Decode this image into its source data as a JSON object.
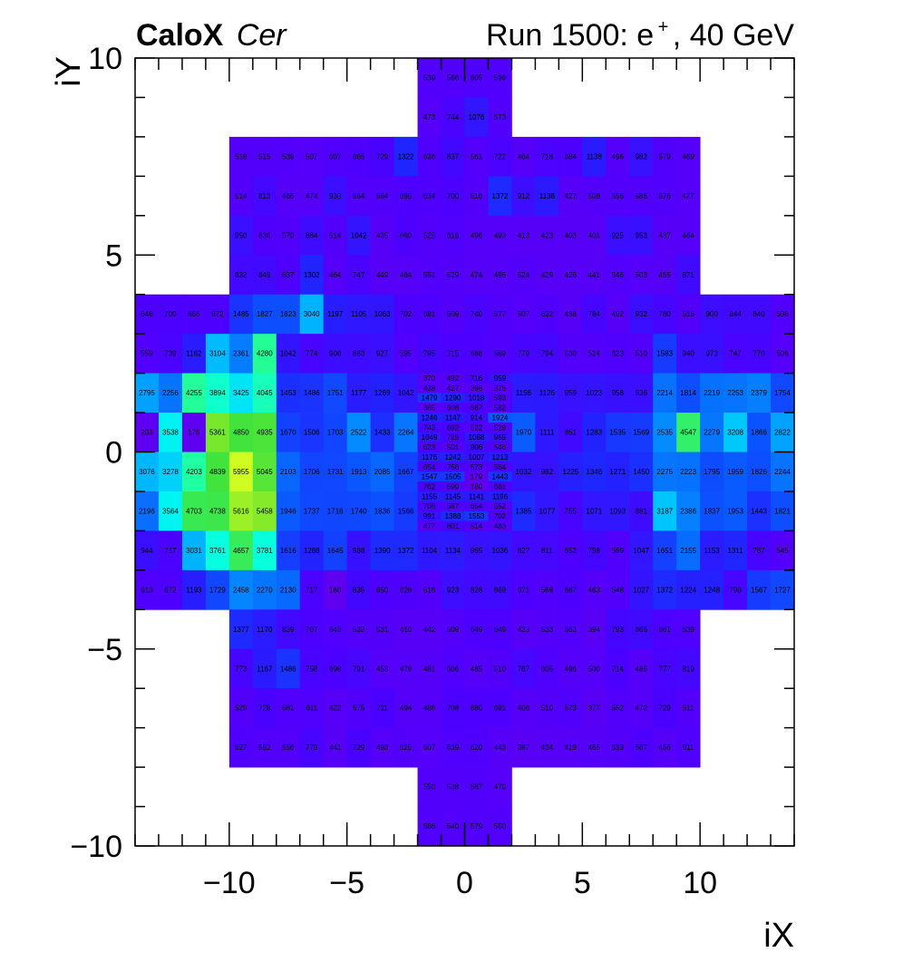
{
  "chart_data": {
    "type": "heatmap",
    "title_left_bold": "CaloX",
    "title_left_italic": "Cer",
    "title_right": "Run 1500: e",
    "title_right_sup": "+",
    "title_right_tail": ", 40 GeV",
    "xlabel": "iX",
    "ylabel": "iY",
    "xlim": [
      -14,
      14
    ],
    "ylim": [
      -10,
      10
    ],
    "xticks": [
      -10,
      -5,
      0,
      5,
      10
    ],
    "yticks": [
      -10,
      -5,
      0,
      5,
      10
    ],
    "xtick_labels": [
      "−10",
      "−5",
      "0",
      "5",
      "10"
    ],
    "ytick_labels": [
      "−10",
      "−5",
      "0",
      "5",
      "10"
    ],
    "color_scale": [
      "#6200ee",
      "#4d00ff",
      "#2222ff",
      "#0b53ff",
      "#0586ff",
      "#00b4ff",
      "#00fff0",
      "#22ff9e",
      "#3fe33e",
      "#7de82b",
      "#d6ff20"
    ],
    "color_range": [
      100,
      6000
    ],
    "outer_rows": [
      {
        "y": 9.5,
        "x0": -2,
        "values": [
          539,
          566,
          605,
          596
        ]
      },
      {
        "y": 8.5,
        "x0": -2,
        "values": [
          473,
          744,
          1076,
          573
        ]
      },
      {
        "y": 7.5,
        "x0": -10,
        "values": [
          518,
          515,
          539,
          507,
          607,
          665,
          729,
          1322,
          636,
          837,
          561,
          722,
          464,
          718,
          684,
          1138,
          496,
          982,
          579,
          469
        ]
      },
      {
        "y": 6.5,
        "x0": -10,
        "values": [
          514,
          813,
          465,
          474,
          930,
          564,
          564,
          695,
          634,
          700,
          516,
          1372,
          912,
          1138,
          427,
          508,
          556,
          586,
          576,
          477
        ]
      },
      {
        "y": 5.5,
        "x0": -10,
        "values": [
          950,
          636,
          570,
          884,
          514,
          1042,
          435,
          660,
          525,
          616,
          496,
          493,
          413,
          423,
          403,
          401,
          925,
          953,
          437,
          464
        ]
      },
      {
        "y": 4.5,
        "x0": -10,
        "values": [
          832,
          849,
          637,
          1302,
          464,
          747,
          449,
          484,
          551,
          529,
          474,
          496,
          524,
          429,
          426,
          441,
          546,
          503,
          455,
          871
        ]
      },
      {
        "y": 3.5,
        "x0": -14,
        "values": [
          648,
          700,
          655,
          672,
          1485,
          1827,
          1823,
          3040,
          1197,
          1105,
          1063,
          702,
          681,
          509,
          740,
          577,
          507,
          622,
          438,
          784,
          402,
          932,
          780,
          516,
          900,
          844,
          840,
          596
        ]
      },
      {
        "y": 2.5,
        "x0": -14,
        "values": [
          559,
          739,
          1162,
          3104,
          2361,
          4280,
          1042,
          774,
          906,
          883,
          927,
          595,
          795,
          715,
          688,
          589,
          779,
          794,
          530,
          524,
          623,
          510,
          1583,
          940,
          973,
          747,
          770,
          506
        ]
      },
      {
        "y": 1.5,
        "x0": -14,
        "values": [
          2795,
          2256,
          4255,
          3894,
          3425,
          4045,
          1453,
          1486,
          1751,
          1177,
          1269,
          1042,
          null,
          null,
          null,
          null,
          1156,
          1126,
          959,
          1023,
          958,
          936,
          2214,
          1814,
          2219,
          2253,
          2379,
          1754
        ]
      },
      {
        "y": 0.5,
        "x0": -14,
        "values": [
          203,
          3538,
          176,
          5361,
          4850,
          4935,
          1670,
          1506,
          1703,
          2522,
          1433,
          2264,
          null,
          null,
          null,
          null,
          1970,
          1111,
          851,
          1283,
          1535,
          1569,
          2535,
          4547,
          2279,
          3208,
          1866,
          2822
        ]
      },
      {
        "y": -0.5,
        "x0": -14,
        "values": [
          3076,
          3278,
          4203,
          4839,
          5955,
          5045,
          2103,
          1706,
          1731,
          1913,
          2085,
          1667,
          null,
          null,
          null,
          null,
          1032,
          982,
          1225,
          1346,
          1271,
          1450,
          2275,
          2223,
          1795,
          1959,
          1826,
          2244
        ]
      },
      {
        "y": -1.5,
        "x0": -14,
        "values": [
          2196,
          3564,
          4703,
          4738,
          5616,
          5458,
          1946,
          1737,
          1716,
          1740,
          1836,
          1566,
          null,
          null,
          null,
          null,
          1385,
          1077,
          755,
          1071,
          1093,
          881,
          3187,
          2386,
          1837,
          1953,
          1443,
          1821
        ]
      },
      {
        "y": -2.5,
        "x0": -14,
        "values": [
          944,
          717,
          3031,
          3761,
          4657,
          3781,
          1616,
          1288,
          1645,
          988,
          1390,
          1372,
          1104,
          1134,
          965,
          1036,
          827,
          811,
          652,
          798,
          569,
          1047,
          1651,
          2155,
          1153,
          1311,
          767,
          545
        ]
      },
      {
        "y": -3.5,
        "x0": -14,
        "values": [
          613,
          672,
          1193,
          1729,
          2458,
          2270,
          2130,
          717,
          160,
          835,
          650,
          628,
          516,
          923,
          828,
          869,
          671,
          568,
          667,
          463,
          548,
          1027,
          1372,
          1224,
          1248,
          790,
          1567,
          1727
        ]
      },
      {
        "y": -4.5,
        "x0": -10,
        "values": [
          1377,
          1170,
          839,
          707,
          643,
          532,
          531,
          410,
          442,
          509,
          649,
          649,
          423,
          533,
          563,
          394,
          793,
          865,
          661,
          639
        ]
      },
      {
        "y": -5.5,
        "x0": -10,
        "values": [
          773,
          1167,
          1486,
          758,
          698,
          791,
          453,
          476,
          481,
          606,
          485,
          510,
          787,
          605,
          496,
          500,
          714,
          485,
          777,
          819
        ]
      },
      {
        "y": -6.5,
        "x0": -10,
        "values": [
          529,
          728,
          581,
          611,
          422,
          575,
          711,
          494,
          486,
          708,
          680,
          691,
          406,
          510,
          573,
          377,
          552,
          472,
          729,
          511
        ]
      },
      {
        "y": -7.5,
        "x0": -10,
        "values": [
          627,
          552,
          556,
          779,
          441,
          729,
          493,
          525,
          507,
          639,
          620,
          443,
          387,
          434,
          419,
          465,
          533,
          667,
          456,
          611
        ]
      },
      {
        "y": -8.5,
        "x0": -2,
        "values": [
          550,
          538,
          587,
          470
        ]
      },
      {
        "y": -9.5,
        "x0": -2,
        "values": [
          586,
          540,
          579,
          550
        ]
      }
    ],
    "fine_region": {
      "x0": -2,
      "x1": 2,
      "y0": -2,
      "y1": 2,
      "rows_top_to_bottom": [
        [
          370,
          492,
          716,
          959
        ],
        [
          438,
          427,
          398,
          376
        ],
        [
          1479,
          1290,
          1018,
          593
        ],
        [
          365,
          608,
          687,
          582
        ],
        [
          1246,
          1147,
          914,
          1924
        ],
        [
          743,
          692,
          522,
          528
        ],
        [
          1049,
          725,
          1088,
          955
        ],
        [
          623,
          501,
          906,
          546
        ],
        [
          1176,
          1242,
          1007,
          1213
        ],
        [
          654,
          756,
          573,
          564
        ],
        [
          1547,
          1505,
          179,
          1443
        ],
        [
          762,
          599,
          180,
          661
        ],
        [
          1155,
          1145,
          1141,
          1196
        ],
        [
          706,
          587,
          654,
          552
        ],
        [
          991,
          1388,
          1553,
          702
        ],
        [
          477,
          801,
          514,
          483
        ]
      ]
    }
  }
}
